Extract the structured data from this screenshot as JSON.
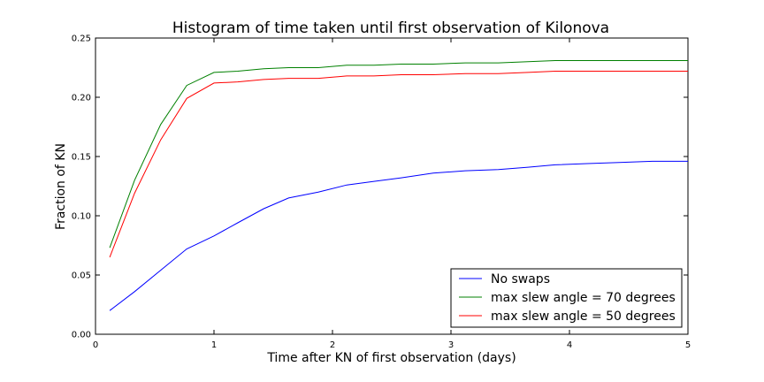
{
  "chart_data": {
    "type": "line",
    "title": "Histogram of time taken until first observation of Kilonova",
    "xlabel": "Time after KN of first observation (days)",
    "ylabel": "Fraction of KN",
    "xlim": [
      0,
      5
    ],
    "ylim": [
      0,
      0.25
    ],
    "xticks": [
      "0",
      "1",
      "2",
      "3",
      "4",
      "5"
    ],
    "yticks": [
      "0.00",
      "0.05",
      "0.10",
      "0.15",
      "0.20",
      "0.25"
    ],
    "grid": false,
    "legend_position": "lower-right",
    "x": [
      0.12,
      0.33,
      0.55,
      0.77,
      1.0,
      1.2,
      1.42,
      1.63,
      1.88,
      2.12,
      2.35,
      2.58,
      2.85,
      3.12,
      3.4,
      3.65,
      3.88,
      4.15,
      4.42,
      4.7,
      5.0
    ],
    "series": [
      {
        "name": "No swaps",
        "color": "#0000ff",
        "values": [
          0.02,
          0.036,
          0.054,
          0.072,
          0.083,
          0.094,
          0.106,
          0.115,
          0.12,
          0.126,
          0.129,
          0.132,
          0.136,
          0.138,
          0.139,
          0.141,
          0.143,
          0.144,
          0.145,
          0.146,
          0.146
        ]
      },
      {
        "name": "max slew angle = 70 degrees",
        "color": "#008000",
        "values": [
          0.073,
          0.13,
          0.177,
          0.21,
          0.221,
          0.222,
          0.224,
          0.225,
          0.225,
          0.227,
          0.227,
          0.228,
          0.228,
          0.229,
          0.229,
          0.23,
          0.231,
          0.231,
          0.231,
          0.231,
          0.231
        ]
      },
      {
        "name": "max slew angle = 50 degrees",
        "color": "#ff0000",
        "values": [
          0.065,
          0.119,
          0.164,
          0.199,
          0.212,
          0.213,
          0.215,
          0.216,
          0.216,
          0.218,
          0.218,
          0.219,
          0.219,
          0.22,
          0.22,
          0.221,
          0.222,
          0.222,
          0.222,
          0.222,
          0.222
        ]
      }
    ]
  }
}
